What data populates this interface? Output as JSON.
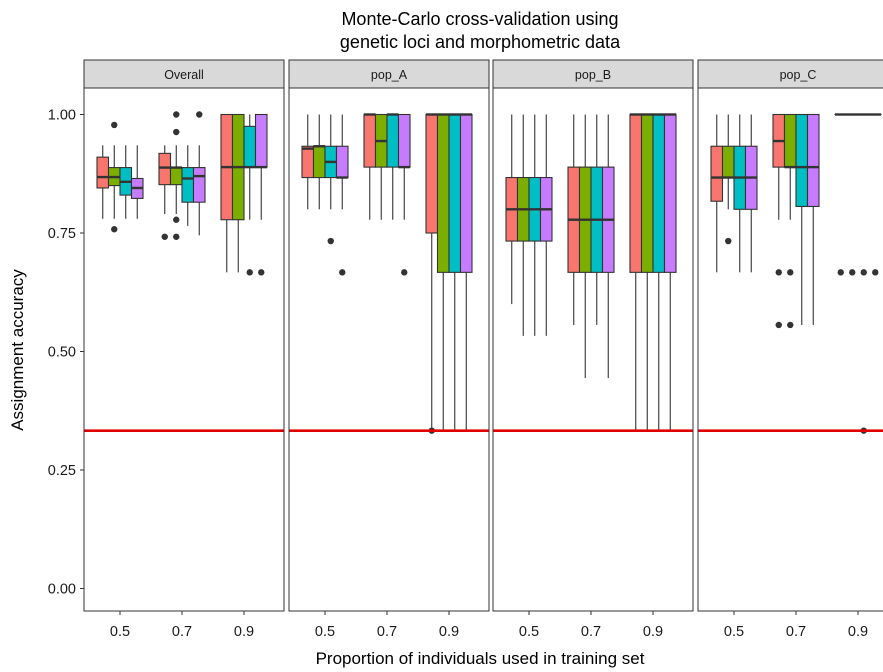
{
  "chart_data": {
    "type": "boxplot",
    "title_lines": [
      "Monte-Carlo cross-validation using",
      "genetic loci and morphometric data"
    ],
    "xlabel": "Proportion of individuals used in training set",
    "ylabel": "Assignment accuracy",
    "ylim": [
      0,
      1.06
    ],
    "yticks": [
      0.0,
      0.25,
      0.5,
      0.75,
      1.0
    ],
    "ytick_labels": [
      "0.00",
      "0.25",
      "0.50",
      "0.75",
      "1.00"
    ],
    "categories": [
      "0.5",
      "0.7",
      "0.9"
    ],
    "reference_line": {
      "value": 0.333,
      "color": "#e00000"
    },
    "fill_colors": [
      "#F8766D",
      "#7CAE00",
      "#00BFC4",
      "#C77CFF"
    ],
    "grid": false,
    "panels": [
      {
        "label": "Overall",
        "groups": [
          [
            {
              "lw": 0.78,
              "q1": 0.845,
              "med": 0.868,
              "q3": 0.91,
              "uw": 0.935,
              "out": []
            },
            {
              "lw": 0.78,
              "q1": 0.85,
              "med": 0.868,
              "q3": 0.888,
              "uw": 0.935,
              "out": [
                0.758,
                0.978
              ]
            },
            {
              "lw": 0.78,
              "q1": 0.83,
              "med": 0.858,
              "q3": 0.888,
              "uw": 0.935,
              "out": []
            },
            {
              "lw": 0.78,
              "q1": 0.823,
              "med": 0.845,
              "q3": 0.865,
              "uw": 0.935,
              "out": []
            }
          ],
          [
            {
              "lw": 0.79,
              "q1": 0.852,
              "med": 0.888,
              "q3": 0.918,
              "uw": 0.935,
              "out": [
                0.742
              ]
            },
            {
              "lw": 0.79,
              "q1": 0.852,
              "med": 0.888,
              "q3": 0.888,
              "uw": 0.935,
              "out": [
                0.742,
                0.778,
                0.963,
                1.0
              ]
            },
            {
              "lw": 0.765,
              "q1": 0.815,
              "med": 0.865,
              "q3": 0.888,
              "uw": 0.935,
              "out": []
            },
            {
              "lw": 0.745,
              "q1": 0.815,
              "med": 0.87,
              "q3": 0.888,
              "uw": 0.935,
              "out": [
                1.0
              ]
            }
          ],
          [
            {
              "lw": 0.667,
              "q1": 0.778,
              "med": 0.889,
              "q3": 1.0,
              "uw": 1.0,
              "out": []
            },
            {
              "lw": 0.667,
              "q1": 0.778,
              "med": 0.889,
              "q3": 1.0,
              "uw": 1.0,
              "out": []
            },
            {
              "lw": 0.778,
              "q1": 0.889,
              "med": 0.889,
              "q3": 0.975,
              "uw": 1.0,
              "out": [
                0.667
              ]
            },
            {
              "lw": 0.778,
              "q1": 0.889,
              "med": 0.889,
              "q3": 1.0,
              "uw": 1.0,
              "out": [
                0.667
              ]
            }
          ]
        ]
      },
      {
        "label": "pop_A",
        "groups": [
          [
            {
              "lw": 0.8,
              "q1": 0.867,
              "med": 0.928,
              "q3": 0.933,
              "uw": 1.0,
              "out": []
            },
            {
              "lw": 0.8,
              "q1": 0.867,
              "med": 0.933,
              "q3": 0.933,
              "uw": 1.0,
              "out": []
            },
            {
              "lw": 0.8,
              "q1": 0.867,
              "med": 0.9,
              "q3": 0.933,
              "uw": 1.0,
              "out": [
                0.733
              ]
            },
            {
              "lw": 0.8,
              "q1": 0.867,
              "med": 0.867,
              "q3": 0.933,
              "uw": 1.0,
              "out": [
                0.667
              ]
            }
          ],
          [
            {
              "lw": 0.778,
              "q1": 0.889,
              "med": 1.0,
              "q3": 1.0,
              "uw": 1.0,
              "out": []
            },
            {
              "lw": 0.778,
              "q1": 0.889,
              "med": 0.944,
              "q3": 1.0,
              "uw": 1.0,
              "out": []
            },
            {
              "lw": 0.778,
              "q1": 0.889,
              "med": 1.0,
              "q3": 1.0,
              "uw": 1.0,
              "out": []
            },
            {
              "lw": 0.778,
              "q1": 0.889,
              "med": 0.889,
              "q3": 1.0,
              "uw": 1.0,
              "out": [
                0.667
              ]
            }
          ],
          [
            {
              "lw": 0.333,
              "q1": 0.75,
              "med": 1.0,
              "q3": 1.0,
              "uw": 1.0,
              "out": [
                0.333
              ]
            },
            {
              "lw": 0.333,
              "q1": 0.667,
              "med": 1.0,
              "q3": 1.0,
              "uw": 1.0,
              "out": []
            },
            {
              "lw": 0.333,
              "q1": 0.667,
              "med": 1.0,
              "q3": 1.0,
              "uw": 1.0,
              "out": []
            },
            {
              "lw": 0.333,
              "q1": 0.667,
              "med": 1.0,
              "q3": 1.0,
              "uw": 1.0,
              "out": []
            }
          ]
        ]
      },
      {
        "label": "pop_B",
        "groups": [
          [
            {
              "lw": 0.6,
              "q1": 0.733,
              "med": 0.8,
              "q3": 0.867,
              "uw": 1.0,
              "out": []
            },
            {
              "lw": 0.533,
              "q1": 0.733,
              "med": 0.8,
              "q3": 0.867,
              "uw": 1.0,
              "out": []
            },
            {
              "lw": 0.533,
              "q1": 0.733,
              "med": 0.8,
              "q3": 0.867,
              "uw": 1.0,
              "out": []
            },
            {
              "lw": 0.533,
              "q1": 0.733,
              "med": 0.8,
              "q3": 0.867,
              "uw": 1.0,
              "out": []
            }
          ],
          [
            {
              "lw": 0.556,
              "q1": 0.667,
              "med": 0.778,
              "q3": 0.889,
              "uw": 1.0,
              "out": []
            },
            {
              "lw": 0.444,
              "q1": 0.667,
              "med": 0.778,
              "q3": 0.889,
              "uw": 1.0,
              "out": []
            },
            {
              "lw": 0.556,
              "q1": 0.667,
              "med": 0.778,
              "q3": 0.889,
              "uw": 1.0,
              "out": []
            },
            {
              "lw": 0.444,
              "q1": 0.667,
              "med": 0.778,
              "q3": 0.889,
              "uw": 1.0,
              "out": []
            }
          ],
          [
            {
              "lw": 0.333,
              "q1": 0.667,
              "med": 1.0,
              "q3": 1.0,
              "uw": 1.0,
              "out": []
            },
            {
              "lw": 0.333,
              "q1": 0.667,
              "med": 1.0,
              "q3": 1.0,
              "uw": 1.0,
              "out": []
            },
            {
              "lw": 0.333,
              "q1": 0.667,
              "med": 1.0,
              "q3": 1.0,
              "uw": 1.0,
              "out": []
            },
            {
              "lw": 0.333,
              "q1": 0.667,
              "med": 1.0,
              "q3": 1.0,
              "uw": 1.0,
              "out": []
            }
          ]
        ]
      },
      {
        "label": "pop_C",
        "groups": [
          [
            {
              "lw": 0.667,
              "q1": 0.817,
              "med": 0.867,
              "q3": 0.933,
              "uw": 1.0,
              "out": []
            },
            {
              "lw": 0.8,
              "q1": 0.867,
              "med": 0.867,
              "q3": 0.933,
              "uw": 1.0,
              "out": [
                0.733
              ]
            },
            {
              "lw": 0.667,
              "q1": 0.8,
              "med": 0.867,
              "q3": 0.933,
              "uw": 1.0,
              "out": []
            },
            {
              "lw": 0.667,
              "q1": 0.8,
              "med": 0.867,
              "q3": 0.933,
              "uw": 1.0,
              "out": []
            }
          ],
          [
            {
              "lw": 0.778,
              "q1": 0.889,
              "med": 0.944,
              "q3": 1.0,
              "uw": 1.0,
              "out": [
                0.556,
                0.667
              ]
            },
            {
              "lw": 0.778,
              "q1": 0.889,
              "med": 0.889,
              "q3": 1.0,
              "uw": 1.0,
              "out": [
                0.556,
                0.667
              ]
            },
            {
              "lw": 0.556,
              "q1": 0.806,
              "med": 0.889,
              "q3": 1.0,
              "uw": 1.0,
              "out": []
            },
            {
              "lw": 0.556,
              "q1": 0.806,
              "med": 0.889,
              "q3": 1.0,
              "uw": 1.0,
              "out": []
            }
          ],
          [
            {
              "lw": 1.0,
              "q1": 1.0,
              "med": 1.0,
              "q3": 1.0,
              "uw": 1.0,
              "out": [
                0.667
              ]
            },
            {
              "lw": 1.0,
              "q1": 1.0,
              "med": 1.0,
              "q3": 1.0,
              "uw": 1.0,
              "out": [
                0.667
              ]
            },
            {
              "lw": 1.0,
              "q1": 1.0,
              "med": 1.0,
              "q3": 1.0,
              "uw": 1.0,
              "out": [
                0.667,
                0.333
              ]
            },
            {
              "lw": 1.0,
              "q1": 1.0,
              "med": 1.0,
              "q3": 1.0,
              "uw": 1.0,
              "out": [
                0.667
              ]
            }
          ]
        ]
      }
    ]
  }
}
